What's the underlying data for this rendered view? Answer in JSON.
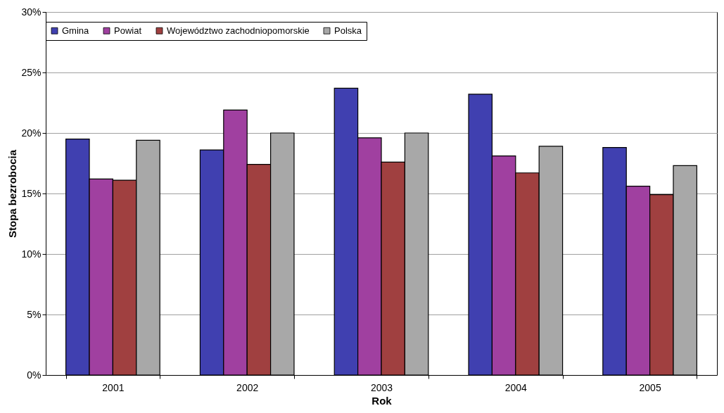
{
  "chart_data": {
    "type": "bar",
    "xlabel": "Rok",
    "ylabel": "Stopa bezrobocia",
    "categories": [
      "2001",
      "2002",
      "2003",
      "2004",
      "2005"
    ],
    "series": [
      {
        "name": "Gmina",
        "color": "#4040b0",
        "values": [
          19.5,
          18.6,
          23.7,
          23.2,
          18.8
        ]
      },
      {
        "name": "Powiat",
        "color": "#a040a0",
        "values": [
          16.2,
          21.9,
          19.6,
          18.1,
          15.6
        ]
      },
      {
        "name": "Województwo zachodniopomorskie",
        "color": "#a04040",
        "values": [
          16.1,
          17.4,
          17.6,
          16.7,
          14.9
        ]
      },
      {
        "name": "Polska",
        "color": "#a8a8a8",
        "values": [
          19.4,
          20.0,
          20.0,
          18.9,
          17.3
        ]
      }
    ],
    "ylim": [
      0,
      30
    ],
    "yticks": [
      {
        "value": 0,
        "label": "0%"
      },
      {
        "value": 5,
        "label": "5%"
      },
      {
        "value": 10,
        "label": "10%"
      },
      {
        "value": 15,
        "label": "15%"
      },
      {
        "value": 20,
        "label": "20%"
      },
      {
        "value": 25,
        "label": "25%"
      },
      {
        "value": 30,
        "label": "30%"
      }
    ],
    "grid": "y",
    "legend": "top"
  }
}
